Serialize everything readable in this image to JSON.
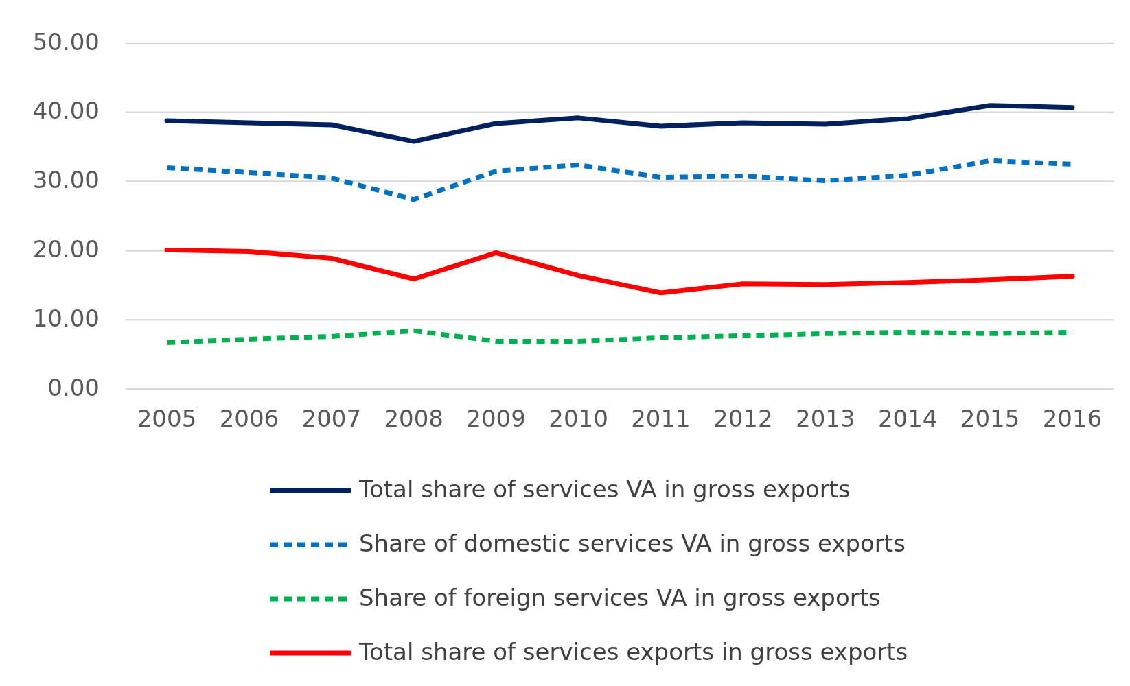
{
  "chart_data": {
    "type": "line",
    "categories": [
      "2005",
      "2006",
      "2007",
      "2008",
      "2009",
      "2010",
      "2011",
      "2012",
      "2013",
      "2014",
      "2015",
      "2016"
    ],
    "ylim": [
      0,
      50
    ],
    "yticks": [
      {
        "value": 0,
        "label": "0.00"
      },
      {
        "value": 10,
        "label": "10.00"
      },
      {
        "value": 20,
        "label": "20.00"
      },
      {
        "value": 30,
        "label": "30.00"
      },
      {
        "value": 40,
        "label": "40.00"
      },
      {
        "value": 50,
        "label": "50.00"
      }
    ],
    "grid": "y",
    "legend": "bottom",
    "marker": "none",
    "series": [
      {
        "name": "Total share of services VA in gross exports",
        "color": "#002060",
        "line_style": "solid",
        "values": [
          38.8,
          38.5,
          38.2,
          35.8,
          38.4,
          39.2,
          38.0,
          38.5,
          38.3,
          39.1,
          41.0,
          40.7
        ]
      },
      {
        "name": "Share of domestic services VA in gross exports",
        "color": "#0070c0",
        "line_style": "dashed",
        "values": [
          32.0,
          31.3,
          30.5,
          27.4,
          31.5,
          32.4,
          30.6,
          30.8,
          30.1,
          30.9,
          33.0,
          32.5
        ]
      },
      {
        "name": "Share of foreign services VA in gross exports",
        "color": "#00b050",
        "line_style": "dashed",
        "values": [
          6.7,
          7.2,
          7.6,
          8.4,
          6.9,
          6.9,
          7.4,
          7.7,
          8.0,
          8.2,
          8.0,
          8.2
        ]
      },
      {
        "name": "Total share of services exports in gross exports",
        "color": "#ff0000",
        "line_style": "solid",
        "values": [
          20.1,
          19.9,
          18.9,
          15.9,
          19.7,
          16.4,
          13.9,
          15.2,
          15.1,
          15.4,
          15.8,
          16.3
        ]
      }
    ]
  }
}
